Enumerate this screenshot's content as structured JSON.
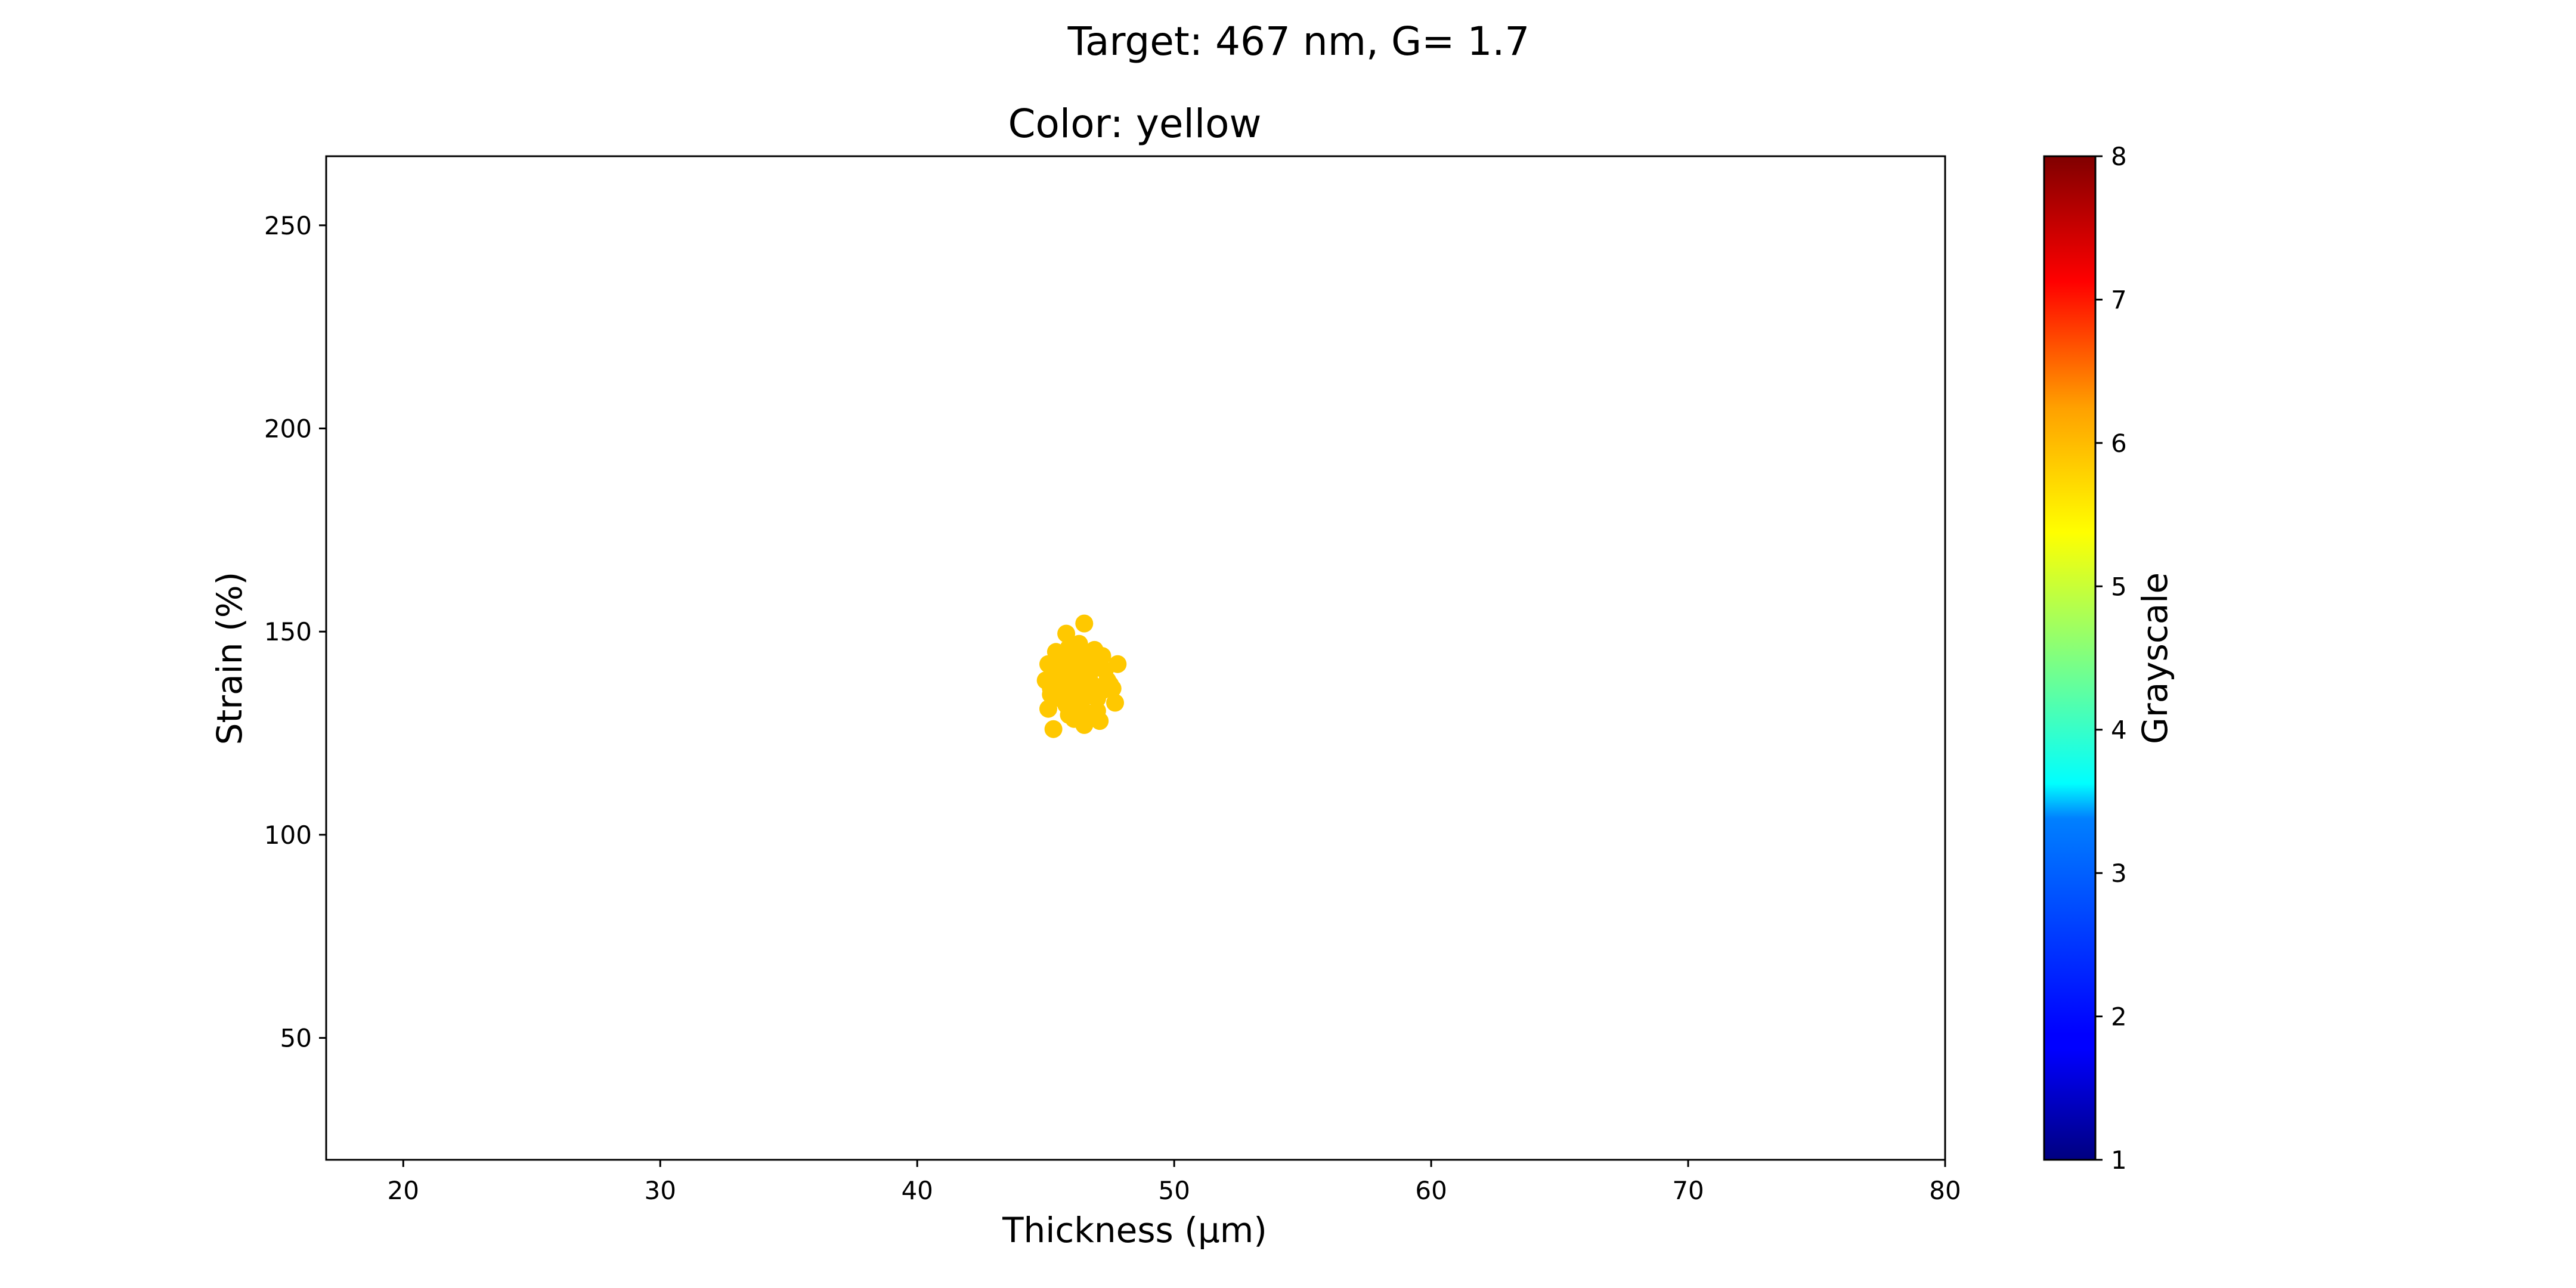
{
  "figure": {
    "suptitle": "Target: 467 nm, G= 1.7"
  },
  "chart_data": {
    "type": "scatter",
    "title": "Color: yellow",
    "xlabel": "Thickness (μm)",
    "ylabel": "Strain (%)",
    "xlim": [
      17,
      80
    ],
    "ylim": [
      20,
      267
    ],
    "xticks": [
      20,
      30,
      40,
      50,
      60,
      70,
      80
    ],
    "yticks": [
      50,
      100,
      150,
      200,
      250
    ],
    "grid": false,
    "legend": "none",
    "marker_color": "#ffc800",
    "colorbar": {
      "label": "Grayscale",
      "colormap": "jet",
      "range": [
        1,
        8
      ],
      "ticks": [
        1,
        2,
        3,
        4,
        5,
        6,
        7,
        8
      ]
    },
    "series": [
      {
        "points": [
          [
            46.5,
            152
          ],
          [
            45.8,
            149.5
          ],
          [
            46.3,
            147
          ],
          [
            46.9,
            145.5
          ],
          [
            47.2,
            144
          ],
          [
            45.4,
            145
          ],
          [
            46.0,
            143
          ],
          [
            45.1,
            142
          ],
          [
            47.8,
            142
          ],
          [
            46.6,
            141
          ],
          [
            45.6,
            140
          ],
          [
            46.2,
            139
          ],
          [
            47.4,
            138
          ],
          [
            45.0,
            138
          ],
          [
            46.8,
            137
          ],
          [
            45.5,
            136.5
          ],
          [
            46.1,
            135.5
          ],
          [
            47.6,
            136
          ],
          [
            45.2,
            134.5
          ],
          [
            46.4,
            133
          ],
          [
            47.0,
            133.5
          ],
          [
            45.8,
            132
          ],
          [
            47.7,
            132.5
          ],
          [
            45.1,
            131
          ],
          [
            46.6,
            130
          ],
          [
            45.9,
            129.5
          ],
          [
            47.1,
            128
          ],
          [
            46.5,
            127
          ],
          [
            45.3,
            126
          ],
          [
            46.0,
            137.5
          ],
          [
            46.7,
            139.5
          ],
          [
            45.7,
            141.5
          ],
          [
            47.3,
            140.5
          ],
          [
            46.3,
            144.5
          ],
          [
            45.4,
            139
          ],
          [
            46.9,
            134.5
          ],
          [
            45.6,
            133.5
          ],
          [
            46.2,
            131.5
          ],
          [
            47.5,
            137
          ],
          [
            45.9,
            146
          ],
          [
            46.8,
            142.5
          ],
          [
            45.2,
            136
          ],
          [
            46.4,
            138.5
          ],
          [
            47.0,
            130.5
          ],
          [
            45.5,
            143.5
          ],
          [
            46.1,
            128.5
          ],
          [
            46.6,
            135
          ],
          [
            45.8,
            138
          ],
          [
            47.2,
            135.5
          ],
          [
            46.0,
            140.5
          ]
        ]
      }
    ]
  }
}
